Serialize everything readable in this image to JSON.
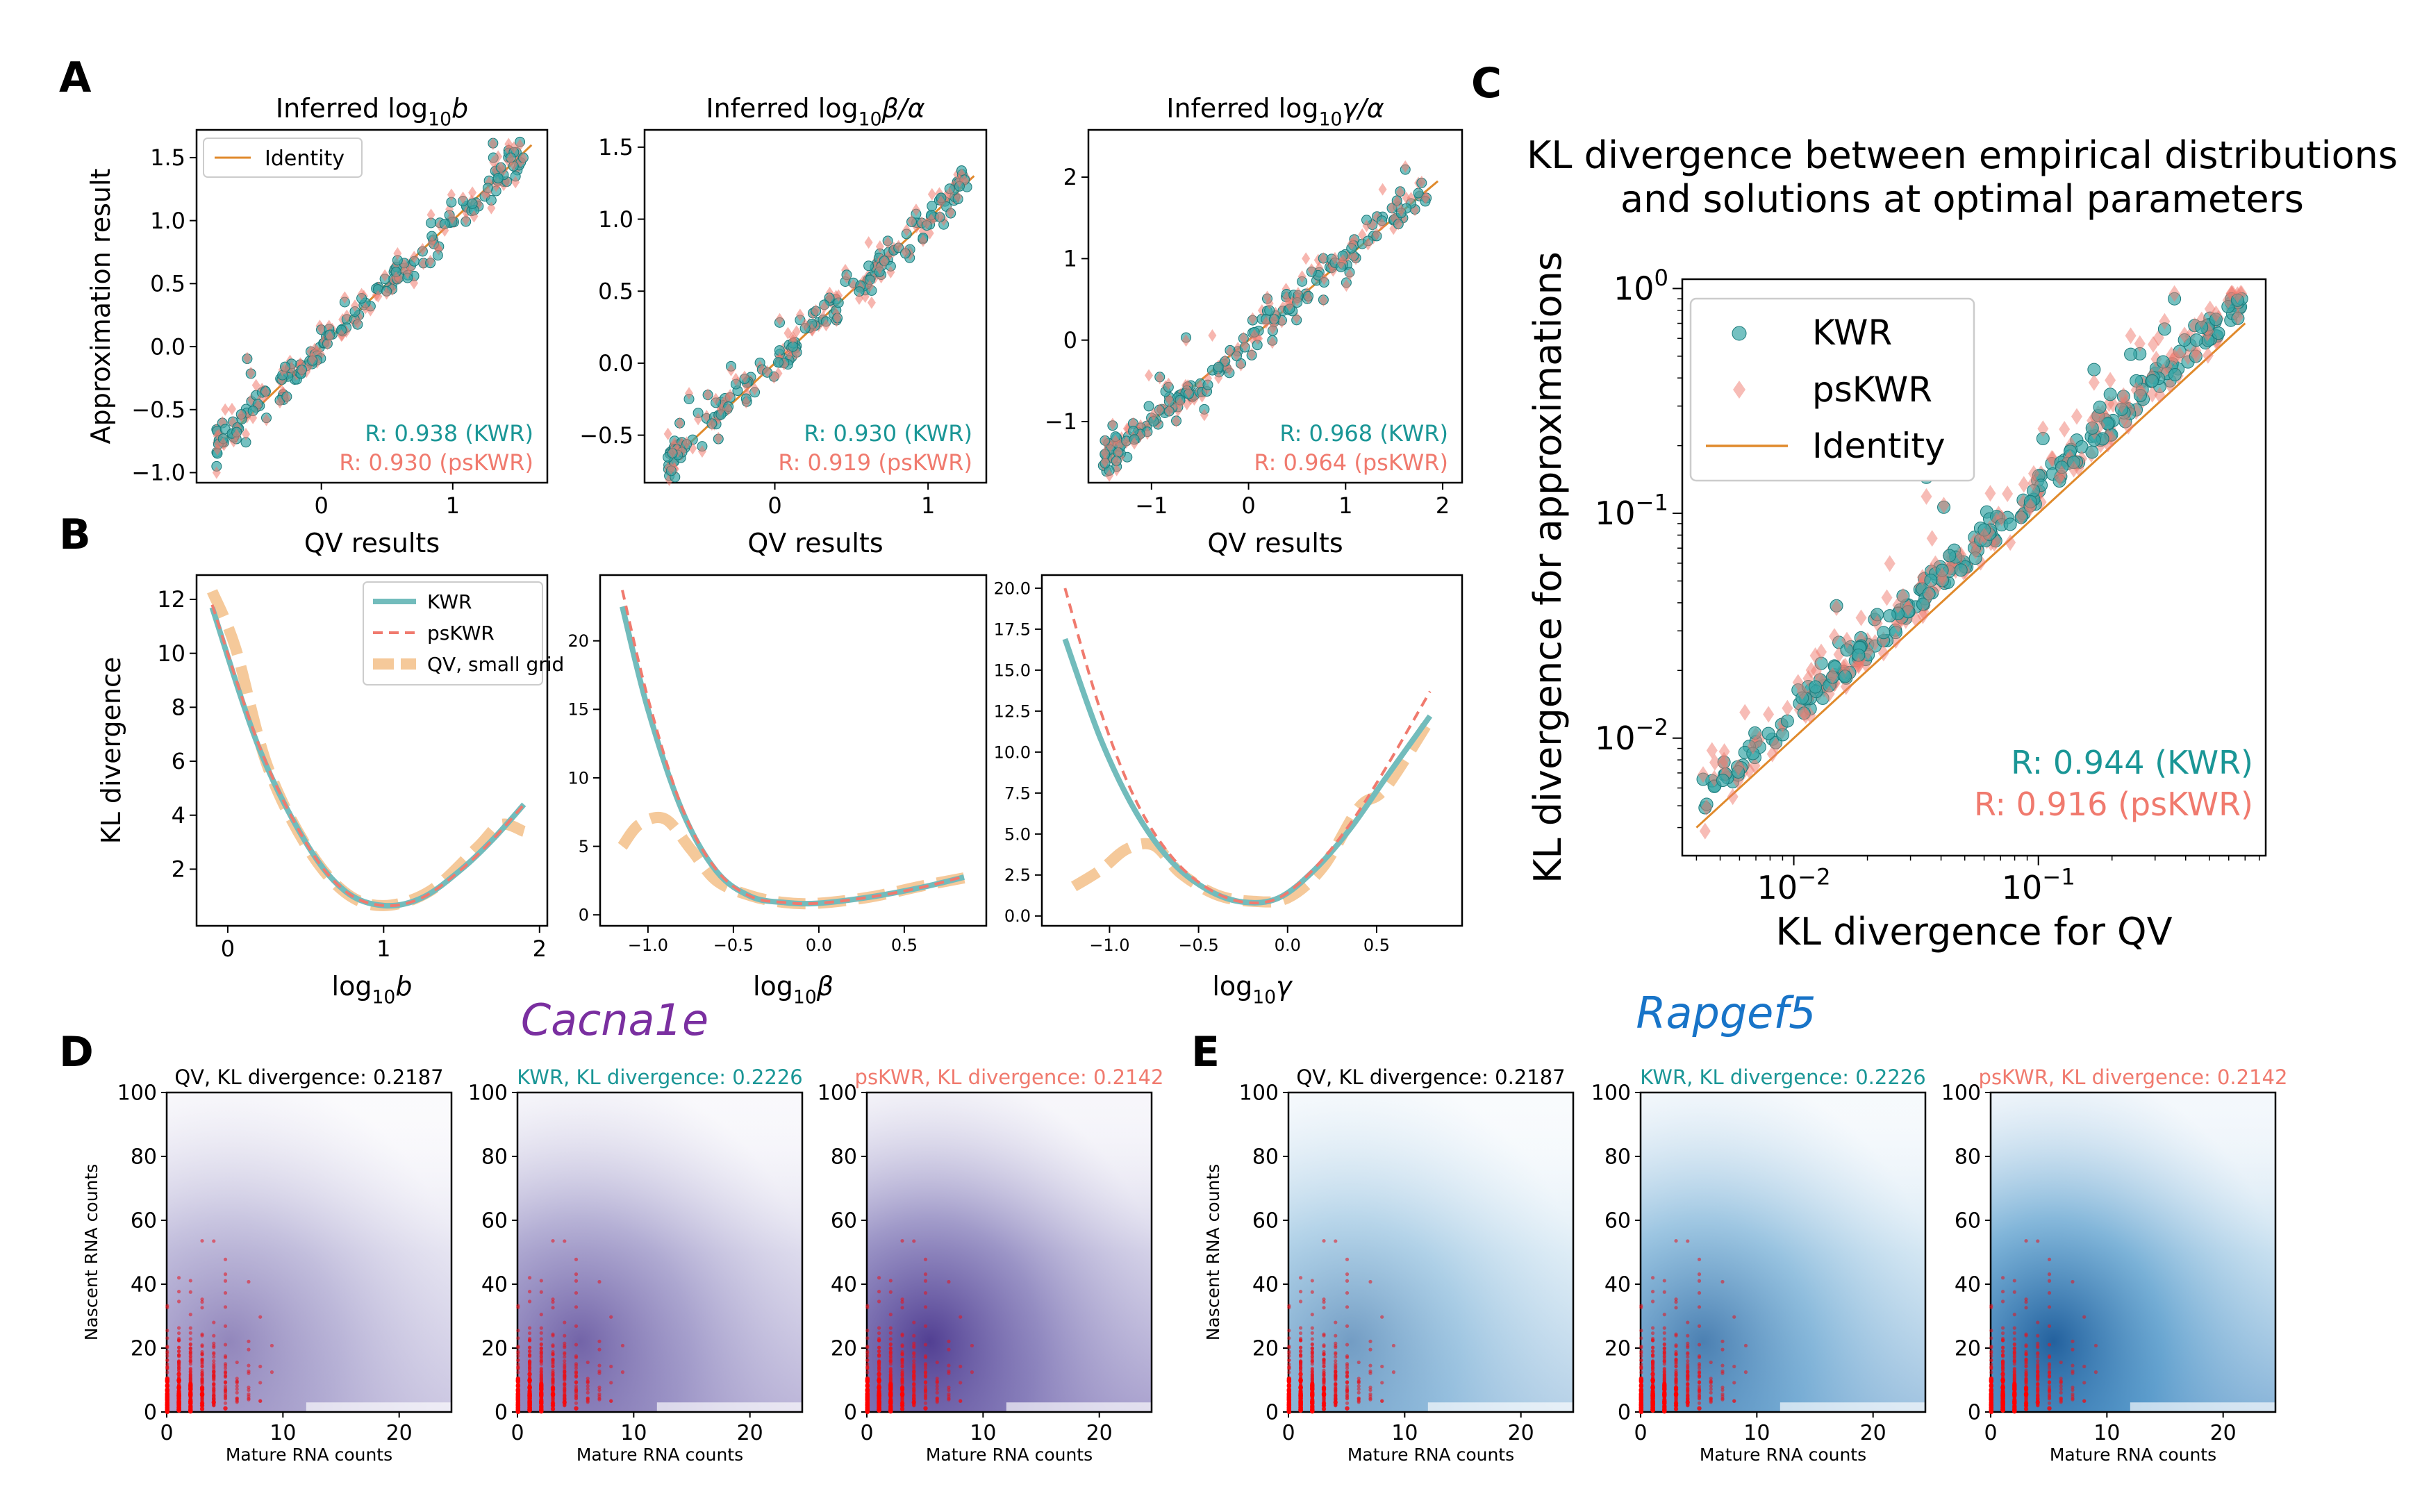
{
  "panel_letters": [
    "A",
    "B",
    "C",
    "D",
    "E"
  ],
  "genes": {
    "D": "Cacna1e",
    "E": "Rapgef5"
  },
  "colors": {
    "kwr": "#1a9696",
    "kwr_marker": "#3aa7a7",
    "pskwr": "#f07a6e",
    "identity": "#e08a2c",
    "qv": "#f5c99a",
    "gene_D": "#7a2fa0",
    "gene_E": "#1874c8"
  },
  "chart_data": [
    {
      "id": "A1",
      "type": "scatter",
      "title": "Inferred log10b",
      "xlabel": "QV results",
      "ylabel": "Approximation result",
      "xlim": [
        -0.95,
        1.72
      ],
      "ylim": [
        -1.08,
        1.72
      ],
      "xticks": [
        "0",
        "1"
      ],
      "yticks": [
        "-1.0",
        "-0.5",
        "0.0",
        "0.5",
        "1.0",
        "1.5"
      ],
      "legend": [
        "Identity"
      ],
      "legend_loc": "upper left",
      "annotations": [
        "R: 0.938 (KWR)",
        "R: 0.930 (psKWR)"
      ],
      "series": [
        {
          "name": "KWR",
          "r": 0.938
        },
        {
          "name": "psKWR",
          "r": 0.93
        }
      ],
      "identity": [
        -0.8,
        1.6
      ]
    },
    {
      "id": "A2",
      "type": "scatter",
      "title": "Inferred log10β/α",
      "xlabel": "QV results",
      "ylabel": "",
      "xlim": [
        -0.85,
        1.38
      ],
      "ylim": [
        -0.83,
        1.62
      ],
      "xticks": [
        "0",
        "1"
      ],
      "yticks": [
        "-0.5",
        "0.0",
        "0.5",
        "1.0",
        "1.5"
      ],
      "annotations": [
        "R: 0.930 (KWR)",
        "R: 0.919 (psKWR)"
      ],
      "series": [
        {
          "name": "KWR",
          "r": 0.93
        },
        {
          "name": "psKWR",
          "r": 0.919
        }
      ],
      "identity": [
        -0.7,
        1.3
      ]
    },
    {
      "id": "A3",
      "type": "scatter",
      "title": "Inferred log10γ/α",
      "xlabel": "QV results",
      "ylabel": "",
      "xlim": [
        -1.65,
        2.2
      ],
      "ylim": [
        -1.75,
        2.58
      ],
      "xticks": [
        "-1",
        "0",
        "1",
        "2"
      ],
      "yticks": [
        "-1",
        "0",
        "1",
        "2"
      ],
      "annotations": [
        "R: 0.968 (KWR)",
        "R: 0.964 (psKWR)"
      ],
      "series": [
        {
          "name": "KWR",
          "r": 0.968
        },
        {
          "name": "psKWR",
          "r": 0.964
        }
      ],
      "identity": [
        -1.5,
        1.95
      ]
    },
    {
      "id": "B1",
      "type": "line",
      "title": "",
      "xlabel": "log10b",
      "ylabel": "KL divergence",
      "xlim": [
        -0.2,
        2.05
      ],
      "ylim": [
        -0.1,
        12.9
      ],
      "xticks": [
        "0",
        "1",
        "2"
      ],
      "yticks": [
        "2",
        "4",
        "6",
        "8",
        "10",
        "12"
      ],
      "legend": [
        "KWR",
        "psKWR",
        "QV, small grid"
      ],
      "legend_loc": "upper right",
      "series": [
        {
          "name": "KWR",
          "x": [
            -0.1,
            0.2,
            0.5,
            0.75,
            1.0,
            1.25,
            1.5,
            1.7,
            1.9
          ],
          "y": [
            11.7,
            6.5,
            3.0,
            1.2,
            0.65,
            0.95,
            2.0,
            3.1,
            4.4
          ]
        },
        {
          "name": "psKWR",
          "x": [
            -0.1,
            0.2,
            0.5,
            0.75,
            1.0,
            1.25,
            1.5,
            1.7,
            1.9
          ],
          "y": [
            11.8,
            6.6,
            3.0,
            1.2,
            0.65,
            0.95,
            2.0,
            3.1,
            4.4
          ]
        },
        {
          "name": "QV, small grid",
          "x": [
            -0.1,
            0.05,
            0.25,
            0.5,
            0.75,
            1.0,
            1.3,
            1.6,
            1.75,
            1.9
          ],
          "y": [
            12.3,
            10.2,
            5.9,
            2.9,
            1.15,
            0.65,
            1.2,
            2.8,
            3.65,
            3.4
          ]
        }
      ]
    },
    {
      "id": "B2",
      "type": "line",
      "title": "",
      "xlabel": "log10β",
      "ylabel": "",
      "xlim": [
        -1.28,
        0.98
      ],
      "ylim": [
        -0.8,
        24.8
      ],
      "xticks": [
        "-1.0",
        "-0.5",
        "0.0",
        "0.5"
      ],
      "yticks": [
        "0",
        "5",
        "10",
        "15",
        "20"
      ],
      "series": [
        {
          "name": "KWR",
          "x": [
            -1.15,
            -1.0,
            -0.8,
            -0.6,
            -0.4,
            -0.2,
            0.0,
            0.3,
            0.6,
            0.85
          ],
          "y": [
            22.5,
            15.0,
            7.6,
            3.2,
            1.35,
            0.9,
            0.85,
            1.3,
            2.0,
            2.75
          ]
        },
        {
          "name": "psKWR",
          "x": [
            -1.15,
            -1.0,
            -0.8,
            -0.6,
            -0.4,
            -0.2,
            0.0,
            0.3,
            0.6,
            0.85
          ],
          "y": [
            23.7,
            15.8,
            7.8,
            3.3,
            1.35,
            0.9,
            0.85,
            1.3,
            2.0,
            2.8
          ]
        },
        {
          "name": "QV, small grid",
          "x": [
            -1.15,
            -1.05,
            -0.9,
            -0.75,
            -0.6,
            -0.4,
            -0.2,
            0.0,
            0.3,
            0.6,
            0.85
          ],
          "y": [
            5.0,
            6.6,
            7.0,
            4.8,
            2.5,
            1.4,
            0.9,
            0.85,
            1.3,
            2.1,
            2.7
          ]
        }
      ]
    },
    {
      "id": "B3",
      "type": "line",
      "title": "",
      "xlabel": "log10γ",
      "ylabel": "",
      "xlim": [
        -1.38,
        0.98
      ],
      "ylim": [
        -0.6,
        20.8
      ],
      "xticks": [
        "-1.0",
        "-0.5",
        "0.0",
        "0.5"
      ],
      "yticks": [
        "0.0",
        "2.5",
        "5.0",
        "7.5",
        "10.0",
        "12.5",
        "15.0",
        "17.5",
        "20.0"
      ],
      "series": [
        {
          "name": "KWR",
          "x": [
            -1.25,
            -1.05,
            -0.85,
            -0.65,
            -0.45,
            -0.25,
            -0.05,
            0.15,
            0.35,
            0.55,
            0.8
          ],
          "y": [
            16.9,
            10.8,
            6.3,
            3.3,
            1.6,
            0.85,
            1.1,
            2.8,
            5.3,
            8.4,
            12.2
          ]
        },
        {
          "name": "psKWR",
          "x": [
            -1.25,
            -1.05,
            -0.85,
            -0.65,
            -0.45,
            -0.25,
            -0.05,
            0.15,
            0.35,
            0.55,
            0.8
          ],
          "y": [
            20.0,
            12.5,
            7.0,
            3.6,
            1.7,
            0.85,
            1.1,
            2.9,
            5.6,
            9.0,
            13.7
          ]
        },
        {
          "name": "QV, small grid",
          "x": [
            -1.2,
            -1.05,
            -0.9,
            -0.75,
            -0.6,
            -0.4,
            -0.2,
            0.0,
            0.2,
            0.4,
            0.55,
            0.8
          ],
          "y": [
            1.8,
            2.8,
            4.1,
            4.3,
            2.6,
            1.3,
            0.9,
            1.1,
            3.0,
            6.6,
            7.8,
            12.0
          ]
        }
      ]
    },
    {
      "id": "C",
      "type": "scatter",
      "title": "KL divergence between empirical distributions\nand solutions at optimal parameters",
      "xlabel": "KL divergence for QV",
      "ylabel": "KL divergence for approximations",
      "xscale": "log",
      "yscale": "log",
      "xlim": [
        0.0035,
        0.85
      ],
      "ylim": [
        0.003,
        1.1
      ],
      "xticks": [
        "10^-2",
        "10^-1"
      ],
      "yticks": [
        "10^-2",
        "10^-1",
        "10^0"
      ],
      "legend": [
        "KWR",
        "psKWR",
        "Identity"
      ],
      "legend_loc": "upper left",
      "annotations": [
        "R: 0.944 (KWR)",
        "R: 0.916 (psKWR)"
      ],
      "series": [
        {
          "name": "KWR",
          "r": 0.944
        },
        {
          "name": "psKWR",
          "r": 0.916
        }
      ],
      "identity": [
        0.004,
        0.7
      ]
    },
    {
      "id": "D1",
      "type": "heatmap",
      "title": "QV, KL divergence: 0.2187",
      "xlabel": "Mature RNA counts",
      "ylabel": "Nascent RNA counts",
      "xlim": [
        0,
        24.5
      ],
      "ylim": [
        0,
        100
      ],
      "xticks": [
        "0",
        "10",
        "20"
      ],
      "yticks": [
        "0",
        "20",
        "40",
        "60",
        "80",
        "100"
      ],
      "kl": 0.2187
    },
    {
      "id": "D2",
      "type": "heatmap",
      "title": "KWR, KL divergence: 0.2226",
      "xlabel": "Mature RNA counts",
      "ylabel": "",
      "xlim": [
        0,
        24.5
      ],
      "ylim": [
        0,
        100
      ],
      "xticks": [
        "0",
        "10",
        "20"
      ],
      "yticks": [
        "0",
        "20",
        "40",
        "60",
        "80",
        "100"
      ],
      "kl": 0.2226
    },
    {
      "id": "D3",
      "type": "heatmap",
      "title": "psKWR, KL divergence: 0.2142",
      "xlabel": "Mature RNA counts",
      "ylabel": "",
      "xlim": [
        0,
        24.5
      ],
      "ylim": [
        0,
        100
      ],
      "xticks": [
        "0",
        "10",
        "20"
      ],
      "yticks": [
        "0",
        "20",
        "40",
        "60",
        "80",
        "100"
      ],
      "kl": 0.2142
    },
    {
      "id": "E1",
      "type": "heatmap",
      "title": "QV, KL divergence: 0.2187",
      "xlabel": "Mature RNA counts",
      "ylabel": "Nascent RNA counts",
      "xlim": [
        0,
        24.5
      ],
      "ylim": [
        0,
        100
      ],
      "xticks": [
        "0",
        "10",
        "20"
      ],
      "yticks": [
        "0",
        "20",
        "40",
        "60",
        "80",
        "100"
      ],
      "kl": 0.2187
    },
    {
      "id": "E2",
      "type": "heatmap",
      "title": "KWR, KL divergence: 0.2226",
      "xlabel": "Mature RNA counts",
      "ylabel": "",
      "xlim": [
        0,
        24.5
      ],
      "ylim": [
        0,
        100
      ],
      "xticks": [
        "0",
        "10",
        "20"
      ],
      "yticks": [
        "0",
        "20",
        "40",
        "60",
        "80",
        "100"
      ],
      "kl": 0.2226
    },
    {
      "id": "E3",
      "type": "heatmap",
      "title": "psKWR, KL divergence: 0.2142",
      "xlabel": "Mature RNA counts",
      "ylabel": "",
      "xlim": [
        0,
        24.5
      ],
      "ylim": [
        0,
        100
      ],
      "xticks": [
        "0",
        "10",
        "20"
      ],
      "yticks": [
        "0",
        "20",
        "40",
        "60",
        "80",
        "100"
      ],
      "kl": 0.2142
    }
  ]
}
